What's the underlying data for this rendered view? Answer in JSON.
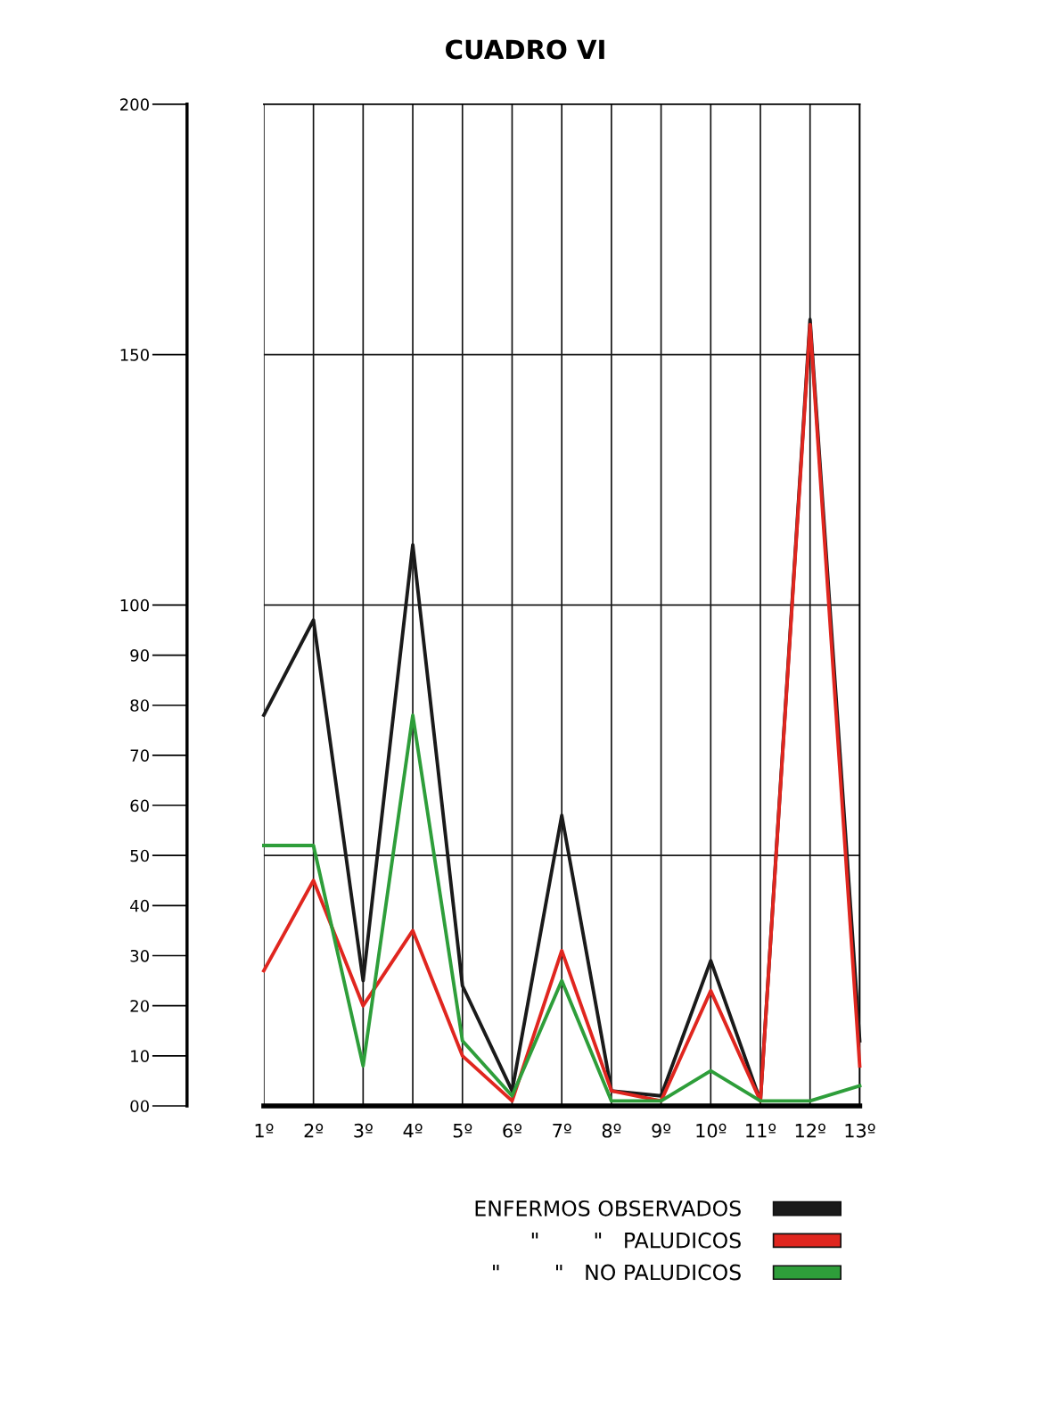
{
  "chart_data": {
    "type": "line",
    "title": "CUADRO VI",
    "categories": [
      "1º",
      "2º",
      "3º",
      "4º",
      "5º",
      "6º",
      "7º",
      "8º",
      "9º",
      "10º",
      "11º",
      "12º",
      "13º"
    ],
    "series": [
      {
        "name": "ENFERMOS OBSERVADOS",
        "color": "#1a1a1a",
        "values": [
          78,
          97,
          25,
          112,
          24,
          3,
          58,
          3,
          2,
          29,
          1,
          157,
          13
        ]
      },
      {
        "name": "\"        \"   PALUDICOS",
        "color": "#e0261f",
        "values": [
          27,
          45,
          20,
          35,
          10,
          1,
          31,
          3,
          1,
          23,
          1,
          156,
          8
        ]
      },
      {
        "name": "\"        \"   NO PALUDICOS",
        "color": "#2e9e3a",
        "values": [
          52,
          52,
          8,
          78,
          13,
          2,
          25,
          1,
          1,
          7,
          1,
          1,
          4
        ]
      }
    ],
    "ylim": [
      0,
      200
    ],
    "yticks": [
      {
        "value": 0,
        "label": "00"
      },
      10,
      20,
      30,
      40,
      50,
      60,
      70,
      80,
      90,
      100,
      150,
      200
    ],
    "grid": "x",
    "ref_lines": [
      {
        "axis": "y",
        "value": 50,
        "color": "#1a1a1a"
      },
      {
        "axis": "y",
        "value": 100,
        "color": "#1a1a1a"
      },
      {
        "axis": "y",
        "value": 150,
        "color": "#1a1a1a"
      }
    ],
    "legend": "bottom right"
  }
}
